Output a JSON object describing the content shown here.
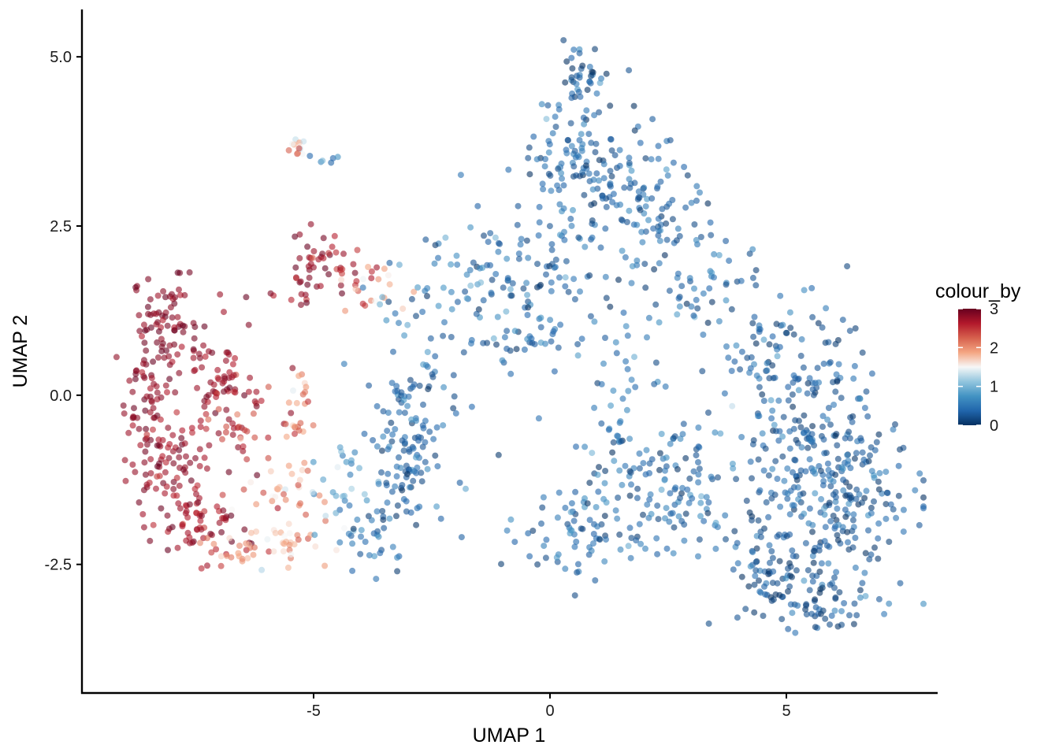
{
  "chart_data": {
    "type": "scatter",
    "xlabel": "UMAP 1",
    "ylabel": "UMAP 2",
    "xlim": [
      -9.9,
      8.2
    ],
    "ylim": [
      -4.4,
      5.7
    ],
    "x_ticks": [
      -5,
      0,
      5
    ],
    "x_tick_labels": [
      "-5",
      "0",
      "5"
    ],
    "y_ticks": [
      -2.5,
      0,
      2.5,
      5
    ],
    "y_tick_labels": [
      "-2.5",
      "0.0",
      "2.5",
      "5.0"
    ],
    "grid": false,
    "legend": {
      "title": "colour_by",
      "placement": "right",
      "range": [
        0,
        3
      ],
      "ticks": [
        0,
        1,
        2,
        3
      ],
      "tick_labels": [
        "0",
        "1",
        "2",
        "3"
      ],
      "palette": [
        "#053061",
        "#2166ac",
        "#4393c3",
        "#92c5de",
        "#f7f7f7",
        "#f4a582",
        "#d6604d",
        "#b2182b",
        "#67001f"
      ]
    },
    "point_opacity": 0.6,
    "clusters": [
      {
        "cx": -8.1,
        "cy": 1.1,
        "sx": 0.35,
        "sy": 0.35,
        "n": 60,
        "v": 2.85,
        "vs": 0.12
      },
      {
        "cx": -8.4,
        "cy": 0.0,
        "sx": 0.3,
        "sy": 0.6,
        "n": 90,
        "v": 2.8,
        "vs": 0.15
      },
      {
        "cx": -8.1,
        "cy": -1.2,
        "sx": 0.35,
        "sy": 0.4,
        "n": 60,
        "v": 2.75,
        "vs": 0.15
      },
      {
        "cx": -7.4,
        "cy": -1.9,
        "sx": 0.4,
        "sy": 0.25,
        "n": 55,
        "v": 2.7,
        "vs": 0.2
      },
      {
        "cx": -7.1,
        "cy": 0.2,
        "sx": 0.4,
        "sy": 0.5,
        "n": 60,
        "v": 2.7,
        "vs": 0.15
      },
      {
        "cx": -6.5,
        "cy": -0.5,
        "sx": 0.35,
        "sy": 0.4,
        "n": 40,
        "v": 2.6,
        "vs": 0.2
      },
      {
        "cx": -6.6,
        "cy": -2.3,
        "sx": 0.45,
        "sy": 0.1,
        "n": 20,
        "v": 2.1,
        "vs": 0.25
      },
      {
        "cx": -5.6,
        "cy": -2.2,
        "sx": 0.5,
        "sy": 0.15,
        "n": 25,
        "v": 1.7,
        "vs": 0.3
      },
      {
        "cx": -5.8,
        "cy": -1.5,
        "sx": 0.5,
        "sy": 0.3,
        "n": 35,
        "v": 1.8,
        "vs": 0.3
      },
      {
        "cx": -5.4,
        "cy": -0.3,
        "sx": 0.15,
        "sy": 0.35,
        "n": 25,
        "v": 2.2,
        "vs": 0.3
      },
      {
        "cx": -5.1,
        "cy": 1.9,
        "sx": 0.4,
        "sy": 0.3,
        "n": 40,
        "v": 2.8,
        "vs": 0.15
      },
      {
        "cx": -4.3,
        "cy": 1.8,
        "sx": 0.3,
        "sy": 0.3,
        "n": 22,
        "v": 2.6,
        "vs": 0.2
      },
      {
        "cx": -3.5,
        "cy": 1.6,
        "sx": 0.35,
        "sy": 0.2,
        "n": 14,
        "v": 1.8,
        "vs": 0.3
      },
      {
        "cx": -5.4,
        "cy": 3.65,
        "sx": 0.15,
        "sy": 0.1,
        "n": 12,
        "v": 1.8,
        "vs": 0.5
      },
      {
        "cx": -4.7,
        "cy": 3.45,
        "sx": 0.2,
        "sy": 0.1,
        "n": 6,
        "v": 0.6,
        "vs": 0.3
      },
      {
        "cx": -4.3,
        "cy": -1.3,
        "sx": 0.4,
        "sy": 0.35,
        "n": 30,
        "v": 0.9,
        "vs": 0.3
      },
      {
        "cx": -3.0,
        "cy": -0.8,
        "sx": 0.4,
        "sy": 0.6,
        "n": 110,
        "v": 0.35,
        "vs": 0.2
      },
      {
        "cx": -2.6,
        "cy": 0.8,
        "sx": 0.45,
        "sy": 0.9,
        "n": 60,
        "v": 0.5,
        "vs": 0.25
      },
      {
        "cx": -3.7,
        "cy": -2.1,
        "sx": 0.5,
        "sy": 0.25,
        "n": 30,
        "v": 0.4,
        "vs": 0.2
      },
      {
        "cx": -1.5,
        "cy": 1.8,
        "sx": 0.4,
        "sy": 0.4,
        "n": 25,
        "v": 0.5,
        "vs": 0.25
      },
      {
        "cx": 0.6,
        "cy": 4.7,
        "sx": 0.3,
        "sy": 0.3,
        "n": 40,
        "v": 0.3,
        "vs": 0.2
      },
      {
        "cx": 0.4,
        "cy": 3.6,
        "sx": 0.5,
        "sy": 0.4,
        "n": 45,
        "v": 0.4,
        "vs": 0.2
      },
      {
        "cx": 1.2,
        "cy": 3.2,
        "sx": 0.9,
        "sy": 0.45,
        "n": 120,
        "v": 0.35,
        "vs": 0.2
      },
      {
        "cx": -0.3,
        "cy": 1.5,
        "sx": 0.7,
        "sy": 0.6,
        "n": 110,
        "v": 0.4,
        "vs": 0.22
      },
      {
        "cx": 2.3,
        "cy": 2.2,
        "sx": 0.8,
        "sy": 0.6,
        "n": 70,
        "v": 0.4,
        "vs": 0.2
      },
      {
        "cx": 1.4,
        "cy": 0.2,
        "sx": 0.5,
        "sy": 0.6,
        "n": 35,
        "v": 0.45,
        "vs": 0.25
      },
      {
        "cx": 3.3,
        "cy": 1.6,
        "sx": 0.4,
        "sy": 0.4,
        "n": 25,
        "v": 0.45,
        "vs": 0.25
      },
      {
        "cx": 2.2,
        "cy": -1.3,
        "sx": 1.0,
        "sy": 0.55,
        "n": 130,
        "v": 0.4,
        "vs": 0.22
      },
      {
        "cx": 0.8,
        "cy": -2.0,
        "sx": 0.8,
        "sy": 0.35,
        "n": 70,
        "v": 0.4,
        "vs": 0.2
      },
      {
        "cx": 4.4,
        "cy": 0.6,
        "sx": 0.5,
        "sy": 0.5,
        "n": 50,
        "v": 0.35,
        "vs": 0.2
      },
      {
        "cx": 5.4,
        "cy": 0.0,
        "sx": 0.6,
        "sy": 0.7,
        "n": 90,
        "v": 0.3,
        "vs": 0.2
      },
      {
        "cx": 5.6,
        "cy": -1.5,
        "sx": 1.0,
        "sy": 0.7,
        "n": 220,
        "v": 0.35,
        "vs": 0.22
      },
      {
        "cx": 6.6,
        "cy": -1.4,
        "sx": 0.45,
        "sy": 0.7,
        "n": 70,
        "v": 0.3,
        "vs": 0.2
      },
      {
        "cx": 4.8,
        "cy": -2.7,
        "sx": 0.55,
        "sy": 0.35,
        "n": 80,
        "v": 0.3,
        "vs": 0.2
      },
      {
        "cx": 6.0,
        "cy": -3.2,
        "sx": 0.35,
        "sy": 0.25,
        "n": 25,
        "v": 0.2,
        "vs": 0.15
      }
    ]
  }
}
